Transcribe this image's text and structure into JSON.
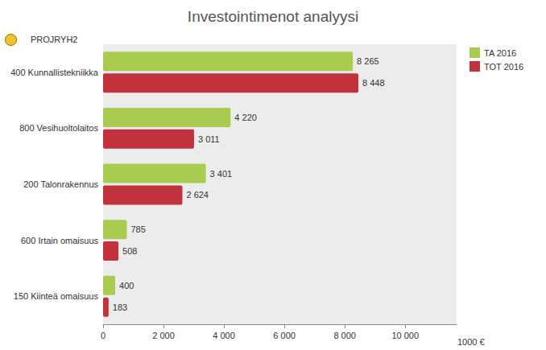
{
  "chart_data": {
    "type": "bar",
    "title": "Investointimenot analyysi",
    "subtitle": "PROJRYH2",
    "x_label": "1000 €",
    "orientation": "horizontal",
    "categories": [
      "400 Kunnallistekniikka",
      "800 Vesihuoltolaitos",
      "200 Talonrakennus",
      "600 Irtain omaisuus",
      "150 Kiinteä omaisuus"
    ],
    "series": [
      {
        "name": "TA 2016",
        "color": "#a9cb4f",
        "values": [
          8265,
          4220,
          3401,
          785,
          400
        ],
        "value_labels": [
          "8 265",
          "4 220",
          "3 401",
          "785",
          "400"
        ]
      },
      {
        "name": "TOT 2016",
        "color": "#c2323c",
        "values": [
          8448,
          3011,
          2624,
          508,
          183
        ],
        "value_labels": [
          "8 448",
          "3 011",
          "2 624",
          "508",
          "183"
        ]
      }
    ],
    "xlim": [
      0,
      11700
    ],
    "xticks": [
      0,
      {
        "value": 2000,
        "label": "2 000"
      },
      {
        "value": 4000,
        "label": "4 000"
      },
      {
        "value": 6000,
        "label": "6 000"
      },
      {
        "value": 8000,
        "label": "8 000"
      },
      {
        "value": 10000,
        "label": "10 000"
      }
    ],
    "grid": false,
    "legend": "top-right",
    "data_labels": true
  }
}
